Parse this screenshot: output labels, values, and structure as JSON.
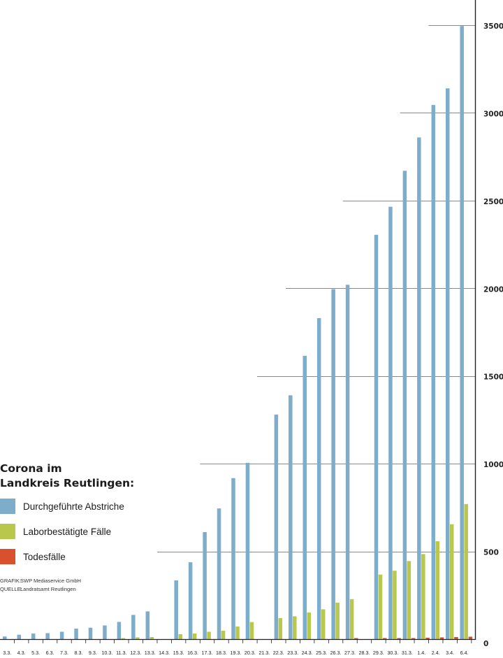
{
  "chart_data": {
    "type": "bar",
    "title": "Corona im Landkreis Reutlingen:",
    "title_lines": [
      "Corona im",
      "Landkreis Reutlingen:"
    ],
    "categories": [
      "3.3.",
      "4.3.",
      "5.3.",
      "6.3.",
      "7.3.",
      "8.3.",
      "9.3.",
      "10.3.",
      "11.3.",
      "12.3.",
      "13.3.",
      "14.3.",
      "15.3.",
      "16.3.",
      "17.3.",
      "18.3.",
      "19.3.",
      "20.3.",
      "21.3.",
      "22.3.",
      "23.3.",
      "24.3.",
      "25.3.",
      "26.3.",
      "27.3.",
      "28.3.",
      "29.3.",
      "30.3.",
      "31.3.",
      "1.4.",
      "2.4.",
      "3.4.",
      "6.4."
    ],
    "series": [
      {
        "name": "Durchgeführte Abstriche",
        "color": "#7eaccb",
        "values": [
          15,
          25,
          32,
          34,
          42,
          60,
          65,
          78,
          98,
          138,
          158,
          null,
          335,
          438,
          610,
          745,
          918,
          1005,
          null,
          1280,
          1390,
          1615,
          1830,
          1995,
          2020,
          null,
          2305,
          2465,
          2670,
          2860,
          3045,
          3140,
          3495
        ]
      },
      {
        "name": "Laborbestätigte Fälle",
        "color": "#b9c84c",
        "values": [
          null,
          null,
          null,
          null,
          null,
          null,
          null,
          null,
          5,
          10,
          12,
          null,
          28,
          32,
          42,
          48,
          72,
          97,
          null,
          120,
          130,
          152,
          170,
          208,
          228,
          null,
          368,
          390,
          445,
          485,
          558,
          655,
          770
        ]
      },
      {
        "name": "Todesfälle",
        "color": "#d9502e",
        "values": [
          null,
          null,
          null,
          null,
          null,
          null,
          null,
          null,
          null,
          null,
          null,
          null,
          null,
          null,
          null,
          null,
          null,
          null,
          null,
          null,
          null,
          null,
          null,
          null,
          3,
          null,
          6,
          6,
          6,
          8,
          10,
          12,
          14
        ]
      }
    ],
    "y_ticks": [
      0,
      500,
      1000,
      1500,
      2000,
      2500,
      3000,
      3500
    ],
    "ylim": [
      0,
      3650
    ],
    "gridlines": [
      {
        "value": 500,
        "from_category": "14.3."
      },
      {
        "value": 1000,
        "from_category": "17.3."
      },
      {
        "value": 1500,
        "from_category": "21.3."
      },
      {
        "value": 2000,
        "from_category": "23.3."
      },
      {
        "value": 2500,
        "from_category": "27.3."
      },
      {
        "value": 3000,
        "from_category": "31.3."
      },
      {
        "value": 3500,
        "from_category": "2.4."
      }
    ],
    "xlabel": "",
    "ylabel": "",
    "legend_position": "bottom-left"
  },
  "legend": [
    {
      "label": "Durchgeführte Abstriche",
      "color": "#7eaccb"
    },
    {
      "label": "Laborbestätigte Fälle",
      "color": "#b9c84c"
    },
    {
      "label": "Todesfälle",
      "color": "#d9502e"
    }
  ],
  "credits": {
    "grafik_key": "GRAFIK:",
    "grafik_value": "SWP Mediaservice GmbH",
    "quelle_key": "QUELLE:",
    "quelle_value": "Landratsamt Reutlingen"
  }
}
